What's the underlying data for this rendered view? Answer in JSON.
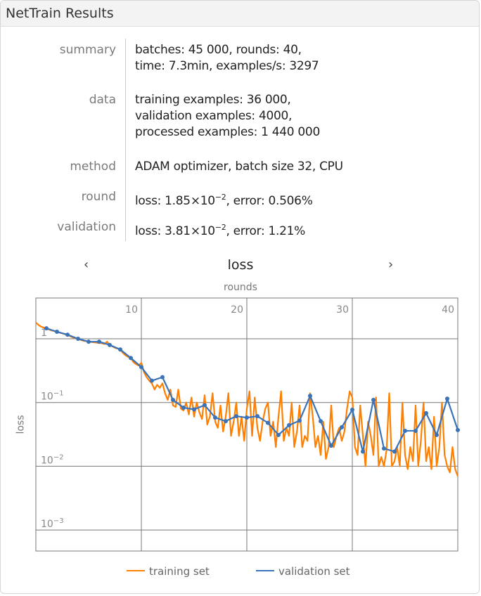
{
  "header": {
    "title": "NetTrain Results"
  },
  "results": [
    {
      "label": "summary",
      "lines": [
        "batches: 45 000, rounds: 40,",
        "time: 7.3min, examples/s: 3297"
      ]
    },
    {
      "label": "data",
      "lines": [
        "training examples: 36 000,",
        "validation examples: 4000,",
        "processed examples: 1 440 000"
      ]
    },
    {
      "label": "method",
      "lines": [
        "ADAM optimizer, batch size 32, CPU"
      ]
    },
    {
      "label": "round",
      "loss_prefix": "loss: 1.85×10",
      "loss_exp": "−2",
      "error": ", error: 0.506%"
    },
    {
      "label": "validation",
      "loss_prefix": "loss: 3.81×10",
      "loss_exp": "−2",
      "error": ", error: 1.21%"
    }
  ],
  "nav": {
    "prev": "‹",
    "next": "›",
    "current": "loss"
  },
  "colors": {
    "training": "#ff8000",
    "validation": "#3b73b9"
  },
  "chart_data": {
    "type": "line",
    "title": "loss",
    "xlabel": "rounds",
    "ylabel": "loss",
    "xlim": [
      0,
      40
    ],
    "ylim_log10": [
      -3.33,
      0.64
    ],
    "yscale": "log",
    "xticks": [
      10,
      20,
      30,
      40
    ],
    "xtick_labels": [
      "10",
      "20",
      "30",
      "40"
    ],
    "yticks": [
      1,
      0.1,
      0.01,
      0.001
    ],
    "ytick_labels": [
      {
        "base": "1",
        "exp": ""
      },
      {
        "base": "10",
        "exp": "−1"
      },
      {
        "base": "10",
        "exp": "−2"
      },
      {
        "base": "10",
        "exp": "−3"
      }
    ],
    "grid": true,
    "legend_position": "bottom",
    "series": [
      {
        "name": "training set",
        "x_step": 0.25,
        "values": [
          1.8,
          1.65,
          1.55,
          1.5,
          1.45,
          1.4,
          1.35,
          1.32,
          1.28,
          1.25,
          1.22,
          1.18,
          1.15,
          1.1,
          1.05,
          1.02,
          1.0,
          0.96,
          0.93,
          0.92,
          0.9,
          0.89,
          0.88,
          0.87,
          0.86,
          0.85,
          0.83,
          0.9,
          0.8,
          0.76,
          0.72,
          0.7,
          0.68,
          0.6,
          0.55,
          0.52,
          0.5,
          0.43,
          0.4,
          0.38,
          0.42,
          0.3,
          0.25,
          0.22,
          0.2,
          0.16,
          0.19,
          0.17,
          0.2,
          0.14,
          0.11,
          0.16,
          0.09,
          0.085,
          0.16,
          0.08,
          0.075,
          0.1,
          0.065,
          0.12,
          0.06,
          0.1,
          0.07,
          0.055,
          0.13,
          0.045,
          0.06,
          0.14,
          0.05,
          0.04,
          0.09,
          0.035,
          0.06,
          0.14,
          0.03,
          0.05,
          0.1,
          0.03,
          0.06,
          0.025,
          0.08,
          0.15,
          0.03,
          0.12,
          0.04,
          0.025,
          0.05,
          0.08,
          0.1,
          0.03,
          0.05,
          0.02,
          0.06,
          0.15,
          0.025,
          0.04,
          0.03,
          0.1,
          0.02,
          0.035,
          0.09,
          0.02,
          0.03,
          0.025,
          0.14,
          0.06,
          0.02,
          0.03,
          0.015,
          0.05,
          0.013,
          0.02,
          0.09,
          0.02,
          0.03,
          0.04,
          0.025,
          0.035,
          0.08,
          0.15,
          0.12,
          0.02,
          0.015,
          0.09,
          0.03,
          0.01,
          0.05,
          0.03,
          0.015,
          0.12,
          0.01,
          0.014,
          0.01,
          0.018,
          0.14,
          0.01,
          0.012,
          0.02,
          0.01,
          0.1,
          0.015,
          0.009,
          0.02,
          0.012,
          0.09,
          0.01,
          0.025,
          0.1,
          0.012,
          0.02,
          0.009,
          0.06,
          0.01,
          0.02,
          0.1,
          0.015,
          0.01,
          0.008,
          0.02,
          0.009,
          0.007
        ]
      },
      {
        "name": "validation set",
        "x_start": 1,
        "values": [
          1.46,
          1.29,
          1.16,
          1.0,
          0.9,
          0.9,
          0.8,
          0.68,
          0.5,
          0.36,
          0.22,
          0.25,
          0.11,
          0.083,
          0.078,
          0.091,
          0.058,
          0.051,
          0.061,
          0.058,
          0.061,
          0.048,
          0.031,
          0.044,
          0.052,
          0.127,
          0.051,
          0.021,
          0.041,
          0.077,
          0.017,
          0.11,
          0.019,
          0.017,
          0.036,
          0.036,
          0.068,
          0.031,
          0.115,
          0.037
        ]
      }
    ]
  }
}
